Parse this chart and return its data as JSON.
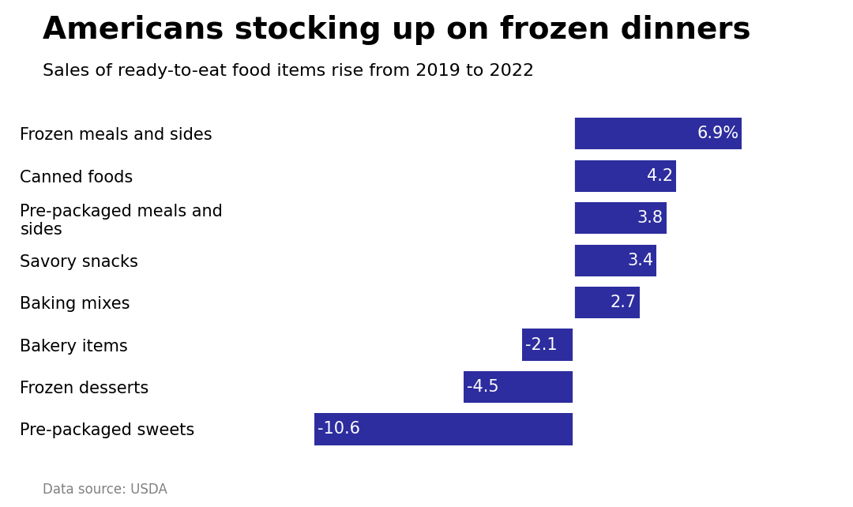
{
  "title": "Americans stocking up on frozen dinners",
  "subtitle": "Sales of ready-to-eat food items rise from 2019 to 2022",
  "footnote": "Data source: USDA",
  "categories": [
    "Frozen meals and sides",
    "Canned foods",
    "Pre-packaged meals and\nsides",
    "Savory snacks",
    "Baking mixes",
    "Bakery items",
    "Frozen desserts",
    "Pre-packaged sweets"
  ],
  "values": [
    6.9,
    4.2,
    3.8,
    3.4,
    2.7,
    -2.1,
    -4.5,
    -10.6
  ],
  "bar_color": "#2D2D9F",
  "title_fontsize": 28,
  "subtitle_fontsize": 16,
  "label_fontsize": 15,
  "category_fontsize": 15,
  "footnote_fontsize": 12,
  "xlim": [
    -13,
    9
  ],
  "background_color": "#ffffff"
}
